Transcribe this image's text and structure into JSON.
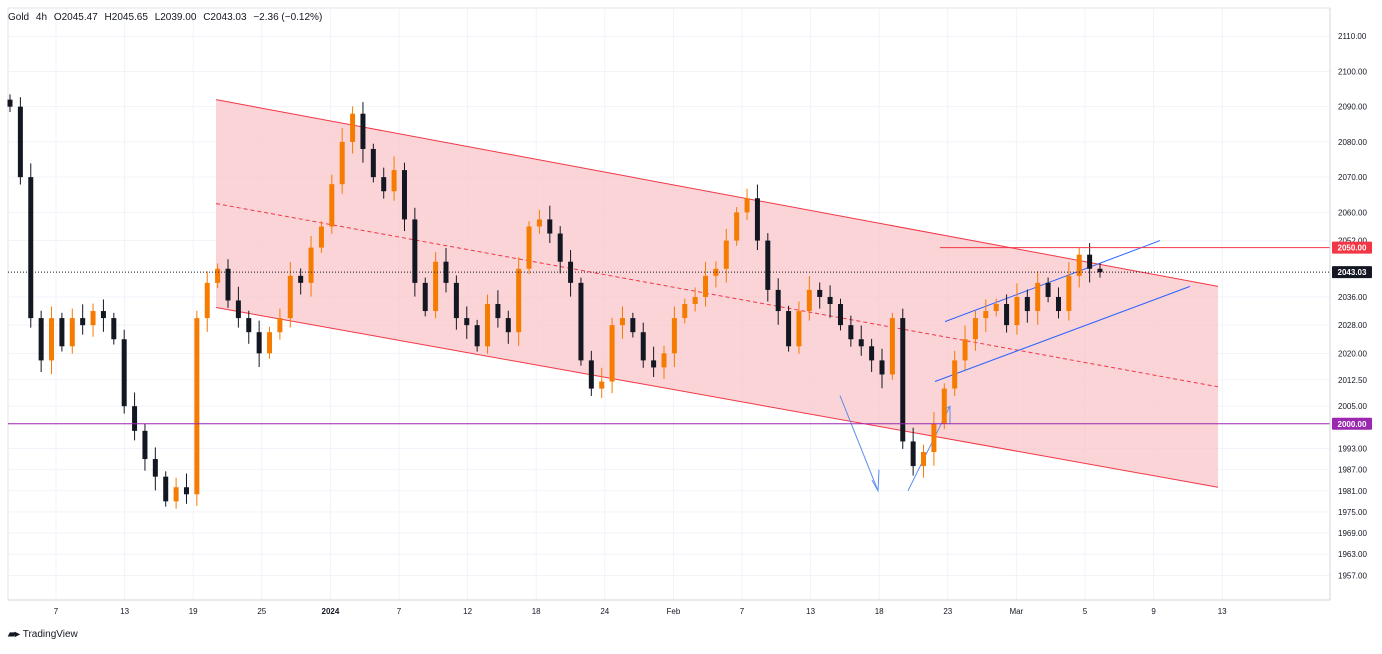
{
  "header": {
    "symbol": "Gold",
    "interval": "4h",
    "open": "O2045.47",
    "high": "H2045.65",
    "low": "L2039.00",
    "close": "C2043.03",
    "change": "−2.36 (−0.12%)"
  },
  "footer": {
    "brand": "TradingView"
  },
  "colors": {
    "up": "#f57c00",
    "down": "#131722",
    "channel_fill": "#f9c6c9",
    "channel_line": "#f23645",
    "rising_line": "#2962ff",
    "level_2000": "#9c27b0",
    "level_2050": "#f23645",
    "price_label": "#131722"
  },
  "chart_data": {
    "type": "candlestick",
    "y_axis": {
      "ticks": [
        "2110.00",
        "2100.00",
        "2090.00",
        "2080.00",
        "2070.00",
        "2060.00",
        "2052.00",
        "2036.00",
        "2028.00",
        "2020.00",
        "2012.50",
        "2005.00",
        "1993.00",
        "1987.00",
        "1981.00",
        "1975.00",
        "1969.00",
        "1963.00",
        "1957.00"
      ],
      "ylim": [
        1950,
        2118
      ]
    },
    "x_axis": {
      "ticks": [
        "7",
        "13",
        "19",
        "25",
        "2024",
        "7",
        "12",
        "18",
        "24",
        "Feb",
        "7",
        "13",
        "18",
        "23",
        "Mar",
        "5",
        "9",
        "13"
      ]
    },
    "price_labels": [
      {
        "value": 2050.0,
        "text": "2050.00",
        "color": "#f23645"
      },
      {
        "value": 2043.03,
        "text": "2043.03",
        "color": "#131722"
      },
      {
        "value": 2000.0,
        "text": "2000.00",
        "color": "#9c27b0"
      }
    ],
    "horizontal_levels": [
      2000.0,
      2050.0
    ],
    "last_price": 2043.03,
    "close_path": [
      2090,
      2070,
      2030,
      2018,
      2030,
      2022,
      2030,
      2028,
      2032,
      2030,
      2024,
      2005,
      1998,
      1990,
      1985,
      1978,
      1982,
      1980,
      2030,
      2040,
      2044,
      2035,
      2030,
      2026,
      2020,
      2026,
      2030,
      2042,
      2040,
      2050,
      2056,
      2068,
      2080,
      2088,
      2078,
      2070,
      2066,
      2072,
      2058,
      2040,
      2032,
      2046,
      2040,
      2030,
      2028,
      2022,
      2034,
      2030,
      2026,
      2044,
      2056,
      2058,
      2054,
      2046,
      2040,
      2018,
      2010,
      2012,
      2028,
      2030,
      2026,
      2018,
      2016,
      2020,
      2030,
      2034,
      2036,
      2042,
      2044,
      2052,
      2060,
      2064,
      2052,
      2038,
      2032,
      2022,
      2032,
      2038,
      2036,
      2034,
      2028,
      2024,
      2022,
      2018,
      2014,
      2030,
      1995,
      1988,
      1992,
      2000,
      2010,
      2018,
      2024,
      2030,
      2032,
      2034,
      2028,
      2036,
      2032,
      2040,
      2036,
      2032,
      2042,
      2048,
      2044,
      2043
    ]
  }
}
